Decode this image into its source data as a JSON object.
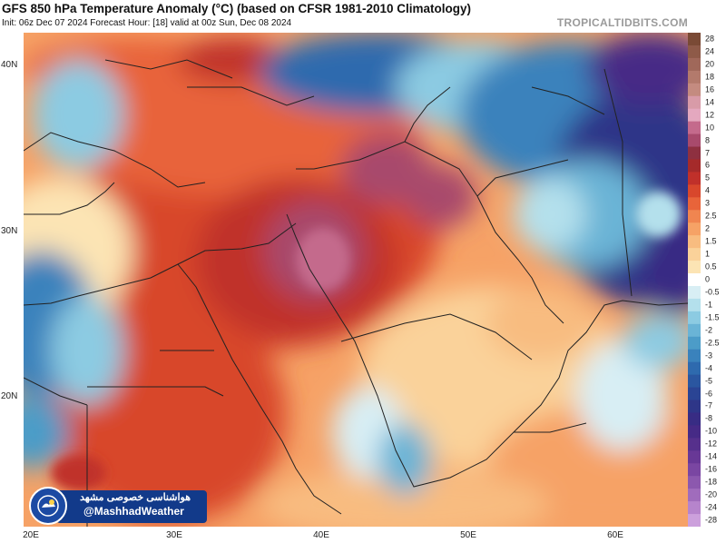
{
  "header": {
    "title": "GFS 850 hPa Temperature Anomaly (°C) (based on CFSR 1981-2010 Climatology)",
    "subtitle": "Init: 06z Dec 07 2024   Forecast Hour: [18]   valid at 00z Sun, Dec 08 2024",
    "brand": "TROPICALTIDBITS.COM"
  },
  "map": {
    "lat_labels": [
      "40N",
      "30N",
      "20N"
    ],
    "lon_labels": [
      "20E",
      "30E",
      "40E",
      "50E",
      "60E"
    ],
    "extent": {
      "lon": [
        20,
        65
      ],
      "lat": [
        12,
        42
      ]
    }
  },
  "colorbar": {
    "labels": [
      "28",
      "24",
      "20",
      "18",
      "16",
      "14",
      "12",
      "10",
      "8",
      "7",
      "6",
      "5",
      "4",
      "3",
      "2.5",
      "2",
      "1.5",
      "1",
      "0.5",
      "0",
      "-0.5",
      "-1",
      "-1.5",
      "-2",
      "-2.5",
      "-3",
      "-4",
      "-5",
      "-6",
      "-7",
      "-8",
      "-10",
      "-12",
      "-14",
      "-16",
      "-18",
      "-20",
      "-24",
      "-28"
    ],
    "colors": [
      "#7a4a35",
      "#8e5a48",
      "#a0685a",
      "#b37a6c",
      "#c48b80",
      "#d89ba8",
      "#e4a8bf",
      "#c46a8c",
      "#a84a6c",
      "#8e3040",
      "#a52a2a",
      "#c0302a",
      "#d8472c",
      "#e8643a",
      "#f08550",
      "#f6a266",
      "#f8bc80",
      "#fad29a",
      "#fce4b4",
      "#ffffff",
      "#d8eef4",
      "#b4e0ec",
      "#8ccbe2",
      "#6ab4d6",
      "#4c9cc8",
      "#3a82bc",
      "#2e6aae",
      "#2a56a0",
      "#2a4494",
      "#2e3688",
      "#382c84",
      "#462a86",
      "#56308c",
      "#683896",
      "#7a46a2",
      "#8c58ae",
      "#a06cbc",
      "#b684cc",
      "#cca0dc"
    ]
  },
  "badge": {
    "persian": "هواشناسی خصوصی مشهد",
    "handle": "@MashhadWeather"
  }
}
